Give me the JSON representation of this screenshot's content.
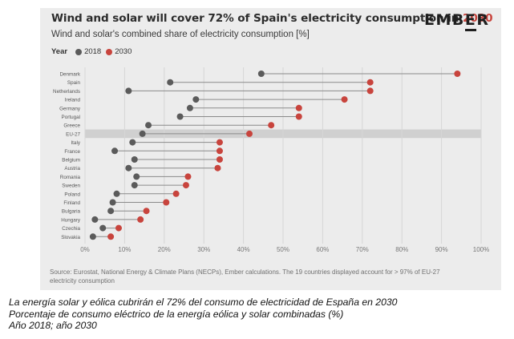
{
  "header": {
    "title_prefix": "Wind and solar will cover 72% of Spain's electricity consumption in ",
    "title_highlight": "2030",
    "subtitle": "Wind and solar's combined share of electricity consumption [%]",
    "logo": "EMBER"
  },
  "legend": {
    "title": "Year",
    "items": [
      {
        "label": "2018",
        "color": "#5b5b5b"
      },
      {
        "label": "2030",
        "color": "#c8443d"
      }
    ]
  },
  "source": "Source: Eurostat, National Energy & Climate Plans (NECPs), Ember calculations. The 19 countries displayed account for > 97% of EU-27 electricity consumption",
  "caption": {
    "line1": "La energía solar y eólica cubrirán el 72% del consumo de electricidad de España en 2030",
    "line2": "Porcentaje de consumo eléctrico de la energía eólica y solar combinadas (%)",
    "line3": "Año 2018; año 2030"
  },
  "colors": {
    "y2018": "#5b5b5b",
    "y2030": "#c8443d",
    "connector": "#8a8a8a",
    "highlight_band": "#d0d0d0",
    "grid": "#d6d6d6"
  },
  "chart_data": {
    "type": "dumbbell",
    "title": "Wind and solar will cover 72% of Spain's electricity consumption in 2030",
    "subtitle": "Wind and solar's combined share of electricity consumption [%]",
    "xlabel": "",
    "ylabel": "",
    "xlim": [
      0,
      100
    ],
    "xticks": [
      0,
      10,
      20,
      30,
      40,
      50,
      60,
      70,
      80,
      90,
      100
    ],
    "xtick_labels": [
      "0%",
      "10%",
      "20%",
      "30%",
      "40%",
      "50%",
      "60%",
      "70%",
      "80%",
      "90%",
      "100%"
    ],
    "grid": true,
    "legend_position": "top-left",
    "highlighted_category": "EU-27",
    "categories": [
      "Denmark",
      "Spain",
      "Netherlands",
      "Ireland",
      "Germany",
      "Portugal",
      "Greece",
      "EU-27",
      "Italy",
      "France",
      "Belgium",
      "Austria",
      "Romania",
      "Sweden",
      "Poland",
      "Finland",
      "Bulgaria",
      "Hungary",
      "Czechia",
      "Slovakia"
    ],
    "series": [
      {
        "name": "2018",
        "values": [
          44.5,
          21.5,
          11,
          28,
          26.5,
          24,
          16,
          14.5,
          12,
          7.5,
          12.5,
          11,
          13,
          12.5,
          8,
          7,
          6.5,
          2.5,
          4.5,
          2
        ]
      },
      {
        "name": "2030",
        "values": [
          94,
          72,
          72,
          65.5,
          54,
          54,
          47,
          41.5,
          34,
          34,
          34,
          33.5,
          26,
          25.5,
          23,
          20.5,
          15.5,
          14,
          8.5,
          6.5
        ]
      }
    ]
  }
}
